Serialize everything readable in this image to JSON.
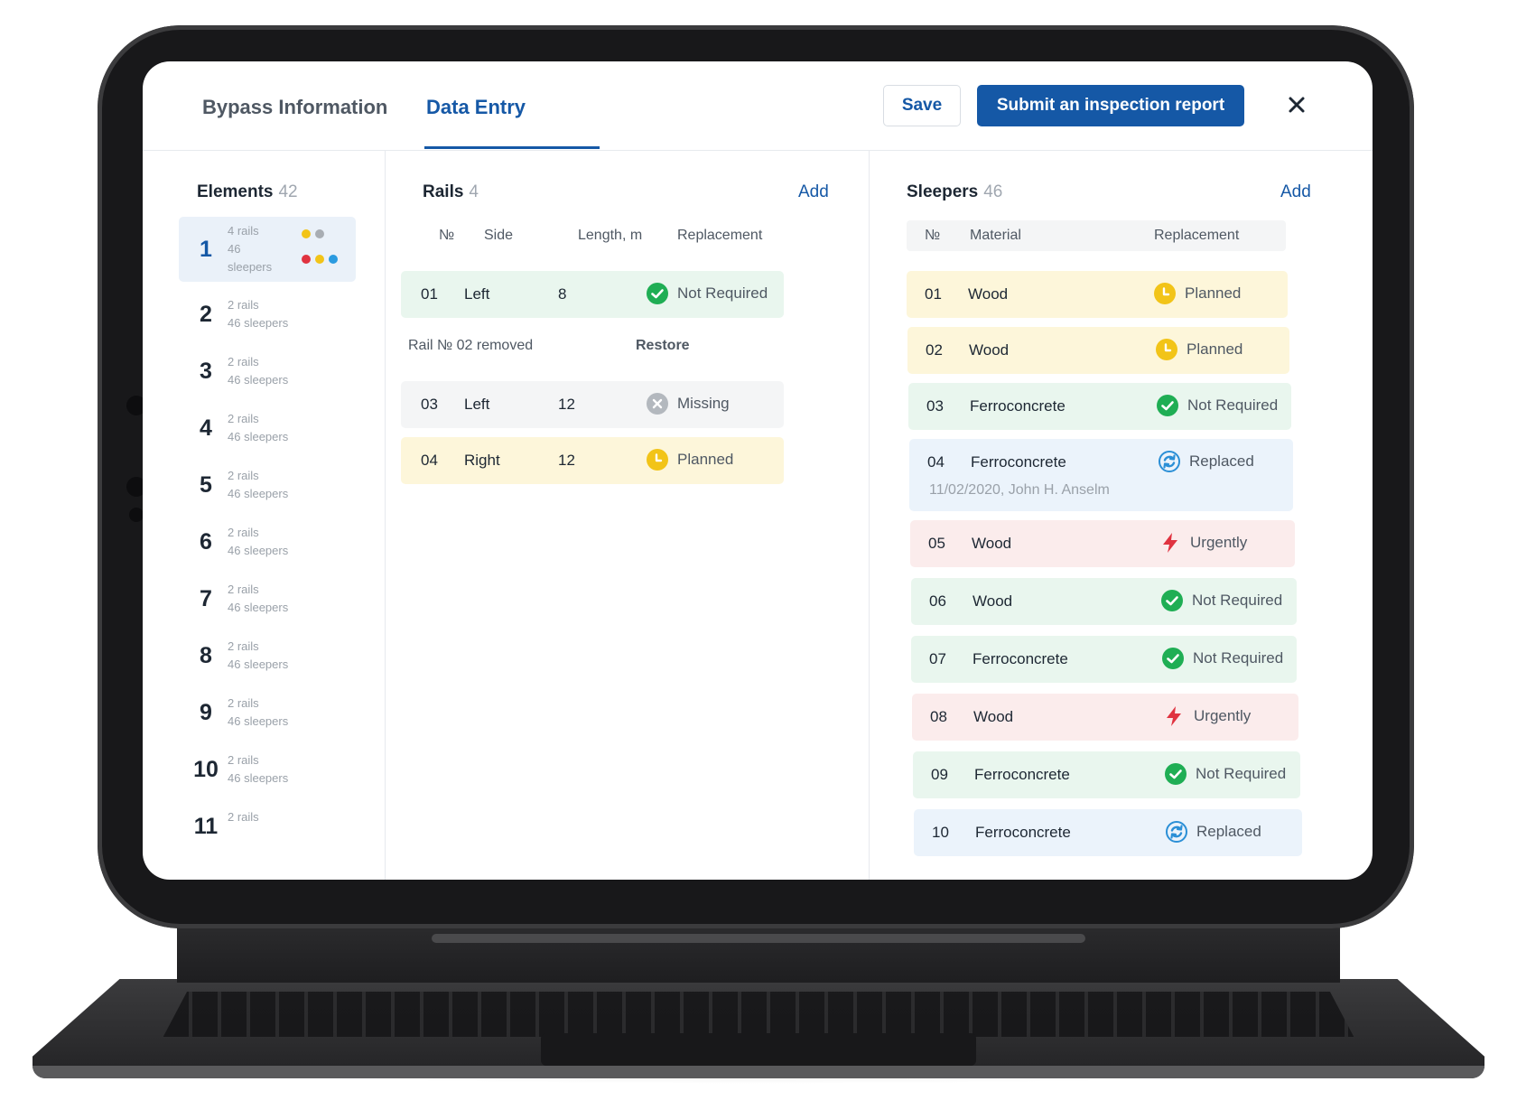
{
  "header": {
    "tabs": [
      {
        "label": "Bypass Information",
        "active": false
      },
      {
        "label": "Data Entry",
        "active": true
      }
    ],
    "save_label": "Save",
    "submit_label": "Submit an inspection report",
    "close_icon": "close-icon"
  },
  "elements": {
    "title": "Elements",
    "count": "42",
    "items": [
      {
        "num": "1",
        "rails": "4 rails",
        "sleepers_a": "46",
        "sleepers_b": "sleepers",
        "active": true
      },
      {
        "num": "2",
        "rails": "2 rails",
        "sleepers": "46 sleepers"
      },
      {
        "num": "3",
        "rails": "2 rails",
        "sleepers": "46 sleepers"
      },
      {
        "num": "4",
        "rails": "2 rails",
        "sleepers": "46 sleepers"
      },
      {
        "num": "5",
        "rails": "2 rails",
        "sleepers": "46 sleepers"
      },
      {
        "num": "6",
        "rails": "2 rails",
        "sleepers": "46 sleepers"
      },
      {
        "num": "7",
        "rails": "2 rails",
        "sleepers": "46 sleepers"
      },
      {
        "num": "8",
        "rails": "2 rails",
        "sleepers": "46 sleepers"
      },
      {
        "num": "9",
        "rails": "2 rails",
        "sleepers": "46 sleepers"
      },
      {
        "num": "10",
        "rails": "2 rails",
        "sleepers": "46 sleepers"
      },
      {
        "num": "11",
        "rails": "2 rails",
        "sleepers": ""
      }
    ],
    "dot_colors": {
      "yellow": "#f2c418",
      "grey": "#a8adb3",
      "red": "#e03340",
      "blue": "#2b9be0"
    }
  },
  "rails": {
    "title": "Rails",
    "count": "4",
    "add_label": "Add",
    "columns": {
      "no": "№",
      "side": "Side",
      "length": "Length, m",
      "replacement": "Replacement"
    },
    "rows": [
      {
        "no": "01",
        "side": "Left",
        "length": "8",
        "status": "Not Required",
        "icon": "check-circle-icon"
      },
      {
        "no": "03",
        "side": "Left",
        "length": "12",
        "status": "Missing",
        "icon": "x-circle-icon"
      },
      {
        "no": "04",
        "side": "Right",
        "length": "12",
        "status": "Planned",
        "icon": "clock-icon"
      }
    ],
    "removed_text": "Rail № 02 removed",
    "restore_label": "Restore"
  },
  "sleepers": {
    "title": "Sleepers",
    "count": "46",
    "add_label": "Add",
    "columns": {
      "no": "№",
      "material": "Material",
      "replacement": "Replacement"
    },
    "rows": [
      {
        "no": "01",
        "material": "Wood",
        "status": "Planned",
        "icon": "clock-icon"
      },
      {
        "no": "02",
        "material": "Wood",
        "status": "Planned",
        "icon": "clock-icon"
      },
      {
        "no": "03",
        "material": "Ferroconcrete",
        "status": "Not Required",
        "icon": "check-circle-icon"
      },
      {
        "no": "04",
        "material": "Ferroconcrete",
        "status": "Replaced",
        "icon": "refresh-icon",
        "note": "11/02/2020, John H. Anselm"
      },
      {
        "no": "05",
        "material": "Wood",
        "status": "Urgently",
        "icon": "lightning-icon"
      },
      {
        "no": "06",
        "material": "Wood",
        "status": "Not Required",
        "icon": "check-circle-icon"
      },
      {
        "no": "07",
        "material": "Ferroconcrete",
        "status": "Not Required",
        "icon": "check-circle-icon"
      },
      {
        "no": "08",
        "material": "Wood",
        "status": "Urgently",
        "icon": "lightning-icon"
      },
      {
        "no": "09",
        "material": "Ferroconcrete",
        "status": "Not Required",
        "icon": "check-circle-icon"
      },
      {
        "no": "10",
        "material": "Ferroconcrete",
        "status": "Replaced",
        "icon": "refresh-icon"
      }
    ]
  },
  "colors": {
    "accent": "#1558a6",
    "green": "#1fae54",
    "yellow": "#f2c418",
    "grey": "#b3b8be",
    "red": "#e03340",
    "blue": "#2b8fd6"
  }
}
